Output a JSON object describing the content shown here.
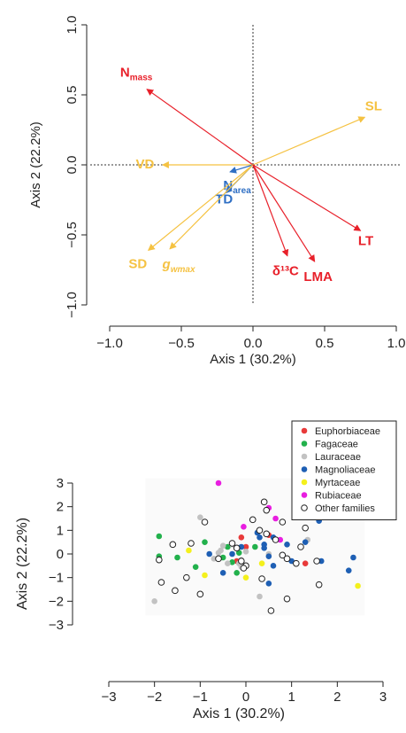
{
  "colors": {
    "trait_red": "#e8202a",
    "trait_orange": "#f5c242",
    "trait_blue": "#2f6fc4",
    "euphorbiaceae": "#e83a3a",
    "fagaceae": "#22b14c",
    "lauraceae": "#c2c2c2",
    "magnoliaceae": "#1e5fb4",
    "myrtaceae": "#f4f01c",
    "rubiaceae": "#e81ee0",
    "other": "#ffffff"
  },
  "chart_data": [
    {
      "type": "biplot",
      "title": "",
      "xlabel": "Axis 1 (30.2%)",
      "ylabel": "Axis 2 (22.2%)",
      "xlim": [
        -1.0,
        1.0
      ],
      "ylim": [
        -1.0,
        1.0
      ],
      "xticks": [
        "−1.0",
        "−0.5",
        "0.0",
        "0.5",
        "1.0"
      ],
      "yticks": [
        "−1.0",
        "−0.5",
        "0.0",
        "0.5",
        "1.0"
      ],
      "vectors": [
        {
          "label": "N",
          "sub": "mass",
          "x": -0.74,
          "y": 0.54,
          "color": "red"
        },
        {
          "label": "SL",
          "sub": "",
          "x": 0.78,
          "y": 0.34,
          "color": "orange"
        },
        {
          "label": "VD",
          "sub": "",
          "x": -0.63,
          "y": 0.0,
          "color": "orange"
        },
        {
          "label": "N",
          "sub": "area",
          "x": -0.16,
          "y": -0.05,
          "color": "blue"
        },
        {
          "label": "TD",
          "sub": "",
          "x": -0.19,
          "y": -0.2,
          "color": "blue"
        },
        {
          "label": "SD",
          "sub": "",
          "x": -0.73,
          "y": -0.61,
          "color": "orange"
        },
        {
          "label": "g",
          "sub": "wmax",
          "x": -0.58,
          "y": -0.6,
          "color": "orange"
        },
        {
          "label": "δ¹³C",
          "sub": "",
          "x": 0.24,
          "y": -0.65,
          "color": "red"
        },
        {
          "label": "LMA",
          "sub": "",
          "x": 0.43,
          "y": -0.69,
          "color": "red"
        },
        {
          "label": "LT",
          "sub": "",
          "x": 0.75,
          "y": -0.47,
          "color": "red"
        }
      ]
    },
    {
      "type": "scatter",
      "title": "",
      "xlabel": "Axis 1 (30.2%)",
      "ylabel": "Axis 2 (22.2%)",
      "xlim": [
        -3,
        3
      ],
      "ylim": [
        -3,
        3
      ],
      "xticks": [
        "−3",
        "−2",
        "−1",
        "0",
        "1",
        "2",
        "3"
      ],
      "yticks": [
        "−3",
        "−2",
        "−1",
        "0",
        "1",
        "2",
        "3"
      ],
      "legend_position": "top-right",
      "series": [
        {
          "name": "Euphorbiaceae",
          "color": "euphorbiaceae",
          "points": [
            [
              0.0,
              0.3
            ],
            [
              0.5,
              0.8
            ],
            [
              -0.1,
              0.7
            ],
            [
              1.3,
              -0.4
            ],
            [
              -0.2,
              -0.3
            ]
          ]
        },
        {
          "name": "Fagaceae",
          "color": "fagaceae",
          "points": [
            [
              -1.9,
              0.75
            ],
            [
              -1.9,
              -0.1
            ],
            [
              -1.5,
              -0.15
            ],
            [
              -1.1,
              -0.55
            ],
            [
              -0.9,
              0.5
            ],
            [
              -0.5,
              -0.15
            ],
            [
              -0.4,
              0.3
            ],
            [
              -0.2,
              -0.8
            ],
            [
              -0.3,
              -0.35
            ],
            [
              0.2,
              0.3
            ],
            [
              -0.15,
              0.05
            ]
          ]
        },
        {
          "name": "Lauraceae",
          "color": "lauraceae",
          "points": [
            [
              -2.0,
              -2.0
            ],
            [
              -1.0,
              1.55
            ],
            [
              -0.7,
              -0.2
            ],
            [
              -0.5,
              0.35
            ],
            [
              -0.6,
              0.05
            ],
            [
              -0.4,
              -0.4
            ],
            [
              -0.3,
              0.4
            ],
            [
              -0.1,
              -0.25
            ],
            [
              -0.1,
              -0.55
            ],
            [
              0.0,
              0.1
            ],
            [
              -0.15,
              -0.4
            ],
            [
              0.3,
              -1.8
            ],
            [
              0.5,
              0.0
            ],
            [
              1.35,
              0.6
            ],
            [
              -0.55,
              0.15
            ]
          ]
        },
        {
          "name": "Magnoliaceae",
          "color": "magnoliaceae",
          "points": [
            [
              -0.8,
              0.0
            ],
            [
              -0.5,
              -0.8
            ],
            [
              -0.3,
              0.0
            ],
            [
              -0.1,
              0.3
            ],
            [
              0.3,
              0.7
            ],
            [
              0.4,
              0.4
            ],
            [
              0.4,
              0.25
            ],
            [
              0.5,
              -0.1
            ],
            [
              0.6,
              0.7
            ],
            [
              0.6,
              -0.5
            ],
            [
              0.5,
              -1.25
            ],
            [
              0.9,
              0.4
            ],
            [
              1.0,
              -0.3
            ],
            [
              1.3,
              0.5
            ],
            [
              1.6,
              1.4
            ],
            [
              1.65,
              -0.3
            ],
            [
              2.25,
              -0.7
            ],
            [
              2.35,
              -0.15
            ],
            [
              0.25,
              0.9
            ]
          ]
        },
        {
          "name": "Myrtaceae",
          "color": "myrtaceae",
          "points": [
            [
              -1.25,
              0.15
            ],
            [
              -0.9,
              -0.9
            ],
            [
              0.0,
              -1.0
            ],
            [
              0.35,
              -0.4
            ],
            [
              2.45,
              -1.35
            ]
          ]
        },
        {
          "name": "Rubiaceae",
          "color": "rubiaceae",
          "points": [
            [
              -0.6,
              3.0
            ],
            [
              -0.05,
              1.15
            ],
            [
              0.5,
              1.95
            ],
            [
              0.65,
              1.5
            ],
            [
              0.75,
              0.6
            ]
          ]
        },
        {
          "name": "Other families",
          "color": "other",
          "points": [
            [
              -1.85,
              -1.2
            ],
            [
              -1.6,
              0.4
            ],
            [
              -1.55,
              -1.55
            ],
            [
              -1.3,
              -1.0
            ],
            [
              -1.2,
              0.45
            ],
            [
              -1.0,
              -1.7
            ],
            [
              -0.9,
              1.35
            ],
            [
              -0.6,
              -0.2
            ],
            [
              -0.3,
              0.45
            ],
            [
              -0.2,
              0.25
            ],
            [
              -0.1,
              -0.3
            ],
            [
              0.0,
              -0.5
            ],
            [
              0.15,
              1.45
            ],
            [
              0.3,
              1.0
            ],
            [
              0.35,
              -1.05
            ],
            [
              0.4,
              2.2
            ],
            [
              0.45,
              1.85
            ],
            [
              0.45,
              0.85
            ],
            [
              0.55,
              -2.4
            ],
            [
              0.65,
              0.6
            ],
            [
              0.8,
              1.35
            ],
            [
              0.8,
              -0.05
            ],
            [
              0.9,
              -0.2
            ],
            [
              0.9,
              -1.9
            ],
            [
              1.1,
              -0.4
            ],
            [
              1.3,
              1.1
            ],
            [
              1.55,
              -0.3
            ],
            [
              1.6,
              -1.3
            ],
            [
              -1.9,
              -0.25
            ],
            [
              -0.05,
              -0.6
            ],
            [
              1.2,
              0.3
            ]
          ]
        }
      ]
    }
  ]
}
